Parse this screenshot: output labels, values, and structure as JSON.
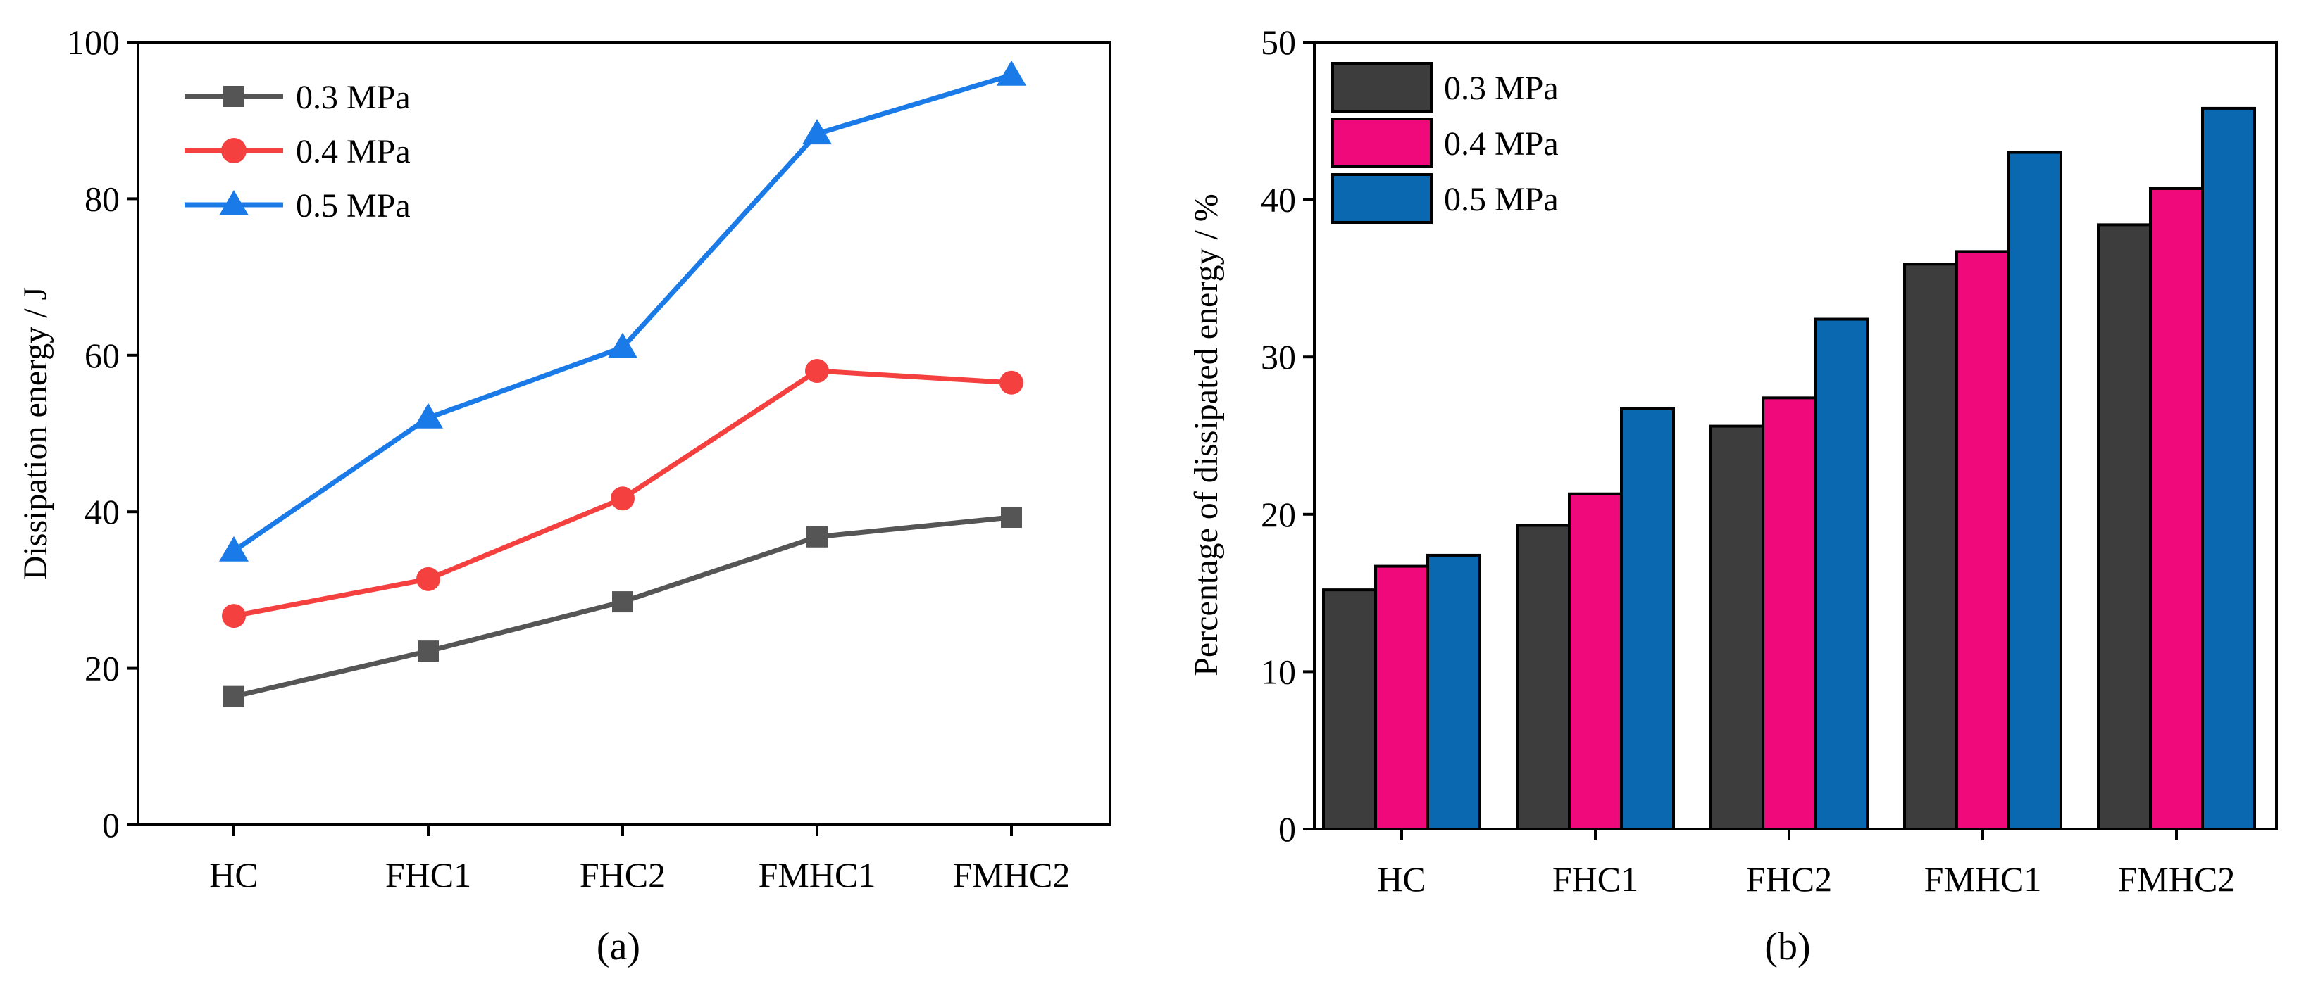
{
  "colors": {
    "s03_line": "#555555",
    "s04_line": "#f54040",
    "s05_line": "#1a7be8",
    "bar03": "#3d3d3d",
    "bar04": "#f0097a",
    "bar05": "#0a68b0"
  },
  "chart_data": [
    {
      "type": "line",
      "caption": "(a)",
      "ylabel": "Dissipation energy / J",
      "xlabel": "",
      "ylim": [
        0,
        100
      ],
      "yticks": [
        "0",
        "20",
        "40",
        "60",
        "80",
        "100"
      ],
      "categories": [
        "HC",
        "FHC1",
        "FHC2",
        "FMHC1",
        "FMHC2"
      ],
      "legend_position": "top-left",
      "series": [
        {
          "name": "0.3 MPa",
          "marker": "square",
          "values": [
            16.4,
            22.2,
            28.5,
            36.8,
            39.3
          ]
        },
        {
          "name": "0.4 MPa",
          "marker": "circle",
          "values": [
            26.7,
            31.4,
            41.7,
            58.0,
            56.5
          ]
        },
        {
          "name": "0.5 MPa",
          "marker": "triangle",
          "values": [
            35.0,
            52.0,
            61.0,
            88.3,
            95.8
          ]
        }
      ]
    },
    {
      "type": "bar",
      "caption": "(b)",
      "ylabel": "Percentage of dissipated energy / %",
      "xlabel": "",
      "ylim": [
        0,
        50
      ],
      "yticks": [
        "0",
        "10",
        "20",
        "30",
        "40",
        "50"
      ],
      "categories": [
        "HC",
        "FHC1",
        "FHC2",
        "FMHC1",
        "FMHC2"
      ],
      "legend_position": "top-left",
      "series": [
        {
          "name": "0.3 MPa",
          "values": [
            15.2,
            19.3,
            25.6,
            35.9,
            38.4
          ]
        },
        {
          "name": "0.4 MPa",
          "values": [
            16.7,
            21.3,
            27.4,
            36.7,
            40.7
          ]
        },
        {
          "name": "0.5 MPa",
          "values": [
            17.4,
            26.7,
            32.4,
            43.0,
            45.8
          ]
        }
      ]
    }
  ]
}
